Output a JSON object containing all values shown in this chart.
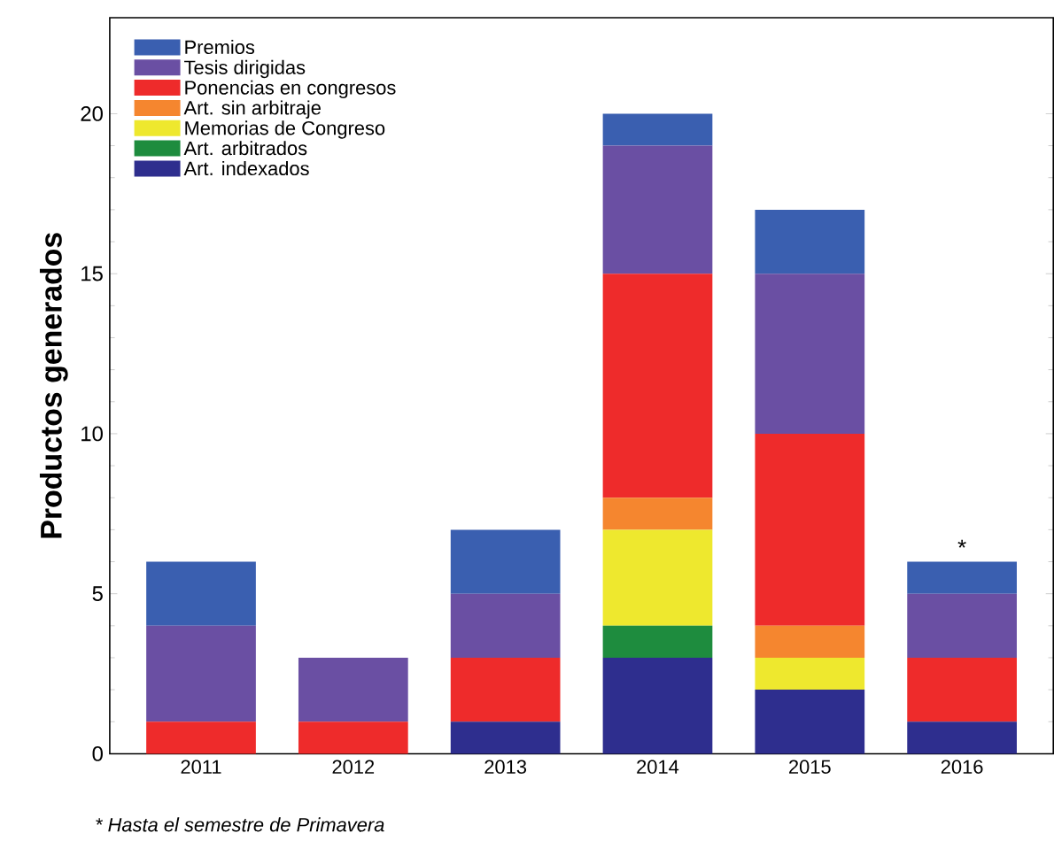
{
  "chart_data": {
    "type": "bar",
    "stacked": true,
    "ylabel": "Productos generados",
    "categories": [
      "2011",
      "2012",
      "2013",
      "2014",
      "2015",
      "2016"
    ],
    "series": [
      {
        "name": "Art. indexados",
        "color": "#2e2e8e",
        "values": [
          0,
          0,
          1,
          3,
          2,
          1
        ]
      },
      {
        "name": "Art. arbitrados",
        "color": "#1e8c3e",
        "values": [
          0,
          0,
          0,
          1,
          0,
          0
        ]
      },
      {
        "name": "Memorias de Congreso",
        "color": "#eee82e",
        "values": [
          0,
          0,
          0,
          3,
          1,
          0
        ]
      },
      {
        "name": "Art. sin arbitraje",
        "color": "#f5862f",
        "values": [
          0,
          0,
          0,
          1,
          1,
          0
        ]
      },
      {
        "name": "Ponencias en congresos",
        "color": "#ee2b2b",
        "values": [
          1,
          1,
          2,
          7,
          6,
          2
        ]
      },
      {
        "name": "Tesis dirigidas",
        "color": "#6a4fa3",
        "values": [
          3,
          2,
          2,
          4,
          5,
          2
        ]
      },
      {
        "name": "Premios",
        "color": "#3a5fb0",
        "values": [
          2,
          0,
          2,
          1,
          2,
          1
        ]
      }
    ],
    "ylim": [
      0,
      23
    ],
    "yticks": [
      0,
      5,
      10,
      15,
      20
    ],
    "grid": false,
    "legend": "top left",
    "annotations": [
      {
        "text": "*",
        "x": "2016",
        "y": 6
      },
      "* Hasta el semestre de Primavera"
    ]
  }
}
